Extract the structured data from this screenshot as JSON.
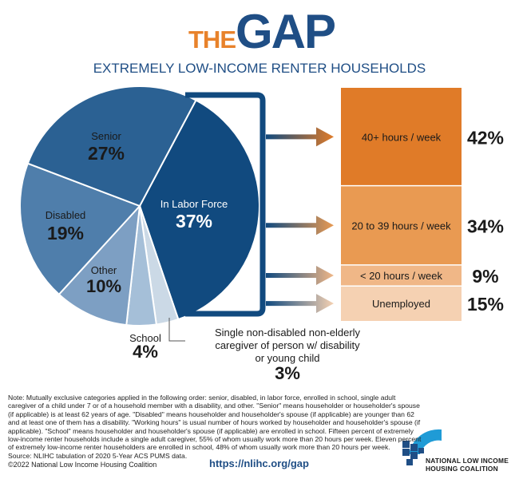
{
  "header": {
    "title_the": "THE",
    "title_gap": "GAP",
    "subtitle": "EXTREMELY LOW-INCOME RENTER HOUSEHOLDS"
  },
  "colors": {
    "navy": "#114a7f",
    "blue_dark": "#2b6193",
    "blue_mid": "#4f7eab",
    "blue_light": "#7d9fc3",
    "blue_pale": "#a5bfd8",
    "blue_faint": "#cbd9e6",
    "orange_dark": "#e07b28",
    "orange_mid": "#e99a52",
    "orange_light": "#f0b787",
    "orange_faint": "#f5d1b2",
    "title_orange": "#e8822b",
    "title_blue": "#1f4e85"
  },
  "chart_data": [
    {
      "type": "pie",
      "name": "household_categories",
      "slices": [
        {
          "label": "In Labor Force",
          "value": 37,
          "display": "37%"
        },
        {
          "label": "Single non-disabled non-elderly caregiver of person w/ disability or young child",
          "value": 3,
          "display": "3%"
        },
        {
          "label": "School",
          "value": 4,
          "display": "4%"
        },
        {
          "label": "Other",
          "value": 10,
          "display": "10%"
        },
        {
          "label": "Disabled",
          "value": 19,
          "display": "19%"
        },
        {
          "label": "Senior",
          "value": 27,
          "display": "27%"
        }
      ],
      "caregiver_label_lines": [
        "Single non-disabled non-elderly",
        "caregiver of person w/ disability",
        "or young child"
      ]
    },
    {
      "type": "bar",
      "name": "labor_force_hours_breakdown",
      "stacked": true,
      "categories": [
        "40+ hours / week",
        "20 to 39 hours / week",
        "< 20 hours / week",
        "Unemployed"
      ],
      "values": [
        42,
        34,
        9,
        15
      ],
      "displays": [
        "42%",
        "34%",
        "9%",
        "15%"
      ]
    }
  ],
  "footer": {
    "note": "Note: Mutually exclusive categories applied in the following order: senior, disabled, in labor force, enrolled in school, single adult caregiver of a child under 7 or of a household member with a disability, and other. \"Senior\" means householder or householder's spouse (if applicable) is at least 62 years of age. \"Disabled\" means householder and householder's spouse (if applicable) are younger than 62 and at least one of them has a disability. \"Working hours\" is usual number of hours worked by householder and householder's spouse (if applicable). \"School\" means householder and householder's spouse (if applicable) are enrolled in school. Fifteen percent of extremely low-income renter households include a single adult caregiver, 55% of whom usually work more than 20 hours per week. Eleven percent of extremely low-income renter householders are enrolled in school, 48% of whom usually work more than 20 hours per week.",
    "source": "Source: NLIHC tabulation of 2020 5-Year ACS PUMS data.",
    "copyright": "©2022 National Low Income Housing Coalition",
    "url": "https://nlihc.org/gap",
    "org_line1": "NATIONAL LOW INCOME",
    "org_line2": "HOUSING COALITION"
  }
}
